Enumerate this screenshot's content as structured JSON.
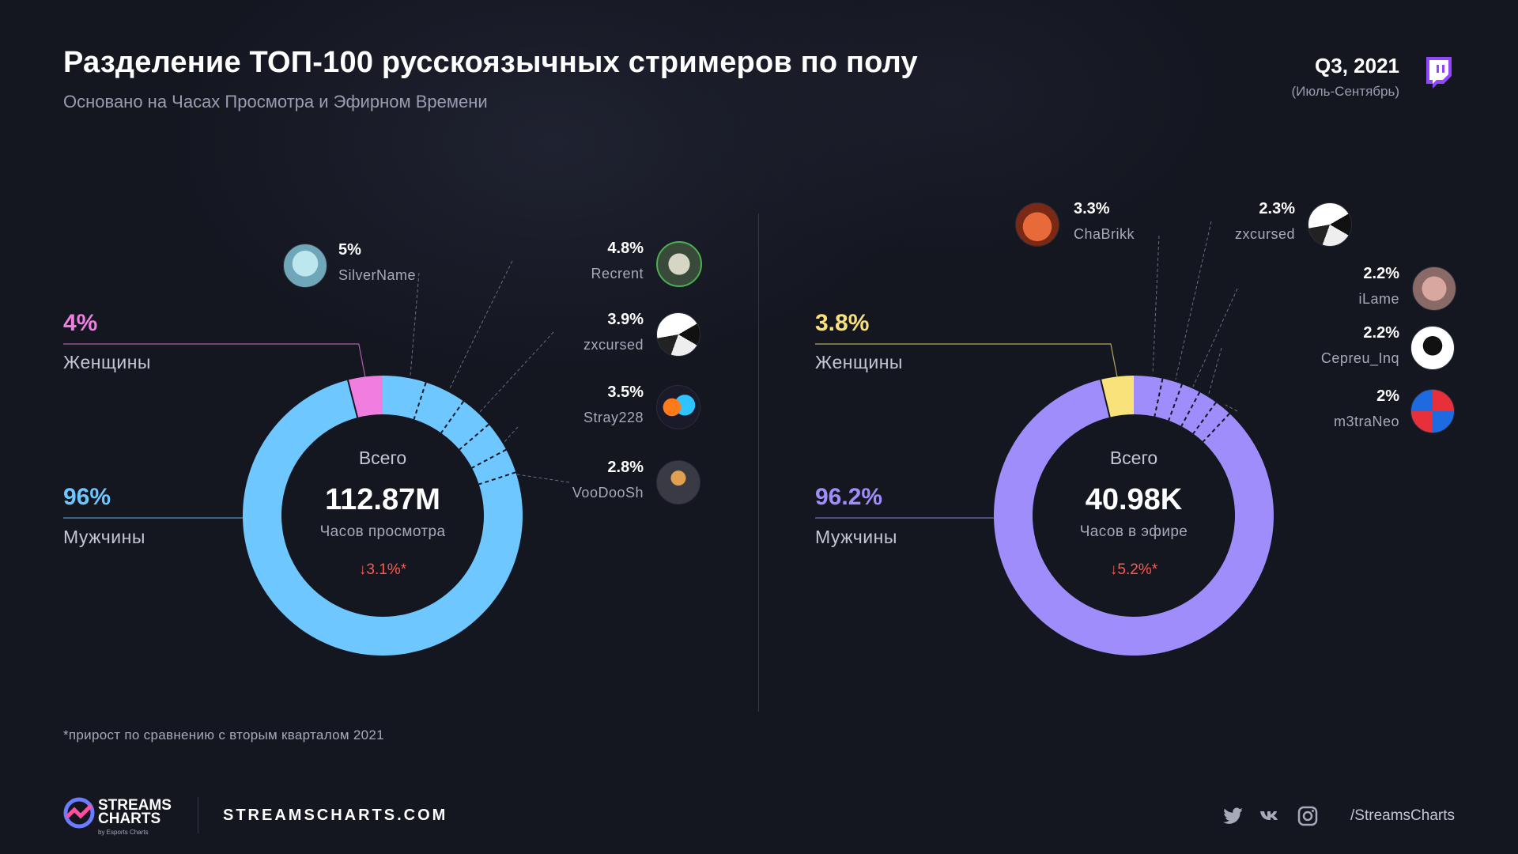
{
  "header": {
    "title": "Разделение ТОП-100 русскоязычных стримеров по полу",
    "subtitle": "Основано на Часах Просмотра и Эфирном Времени",
    "period": "Q3, 2021",
    "period_sub": "(Июль-Сентябрь)"
  },
  "chart_data": [
    {
      "type": "donut",
      "center_label": "Всего",
      "total": "112.87M",
      "unit": "Часов просмотра",
      "change": "↓3.1%*",
      "segments": [
        {
          "label": "Мужчины",
          "value": 96,
          "display": "96%",
          "color": "#6fc7ff"
        },
        {
          "label": "Женщины",
          "value": 4,
          "display": "4%",
          "color": "#f07ee0"
        }
      ],
      "top_streamers": [
        {
          "name": "SilverName",
          "value": 5,
          "display": "5%"
        },
        {
          "name": "Recrent",
          "value": 4.8,
          "display": "4.8%"
        },
        {
          "name": "zxcursed",
          "value": 3.9,
          "display": "3.9%"
        },
        {
          "name": "Stray228",
          "value": 3.5,
          "display": "3.5%"
        },
        {
          "name": "VooDooSh",
          "value": 2.8,
          "display": "2.8%"
        }
      ]
    },
    {
      "type": "donut",
      "center_label": "Всего",
      "total": "40.98K",
      "unit": "Часов в эфире",
      "change": "↓5.2%*",
      "segments": [
        {
          "label": "Мужчины",
          "value": 96.2,
          "display": "96.2%",
          "color": "#9f8dfb"
        },
        {
          "label": "Женщины",
          "value": 3.8,
          "display": "3.8%",
          "color": "#f9e27a"
        }
      ],
      "top_streamers": [
        {
          "name": "ChaBrikk",
          "value": 3.3,
          "display": "3.3%"
        },
        {
          "name": "zxcursed",
          "value": 2.3,
          "display": "2.3%"
        },
        {
          "name": "iLame",
          "value": 2.2,
          "display": "2.2%"
        },
        {
          "name": "Cepreu_Inq",
          "value": 2.2,
          "display": "2.2%"
        },
        {
          "name": "m3traNeo",
          "value": 2,
          "display": "2%"
        }
      ]
    }
  ],
  "footnote": "*прирост по сравнению с вторым кварталом 2021",
  "footer": {
    "logo_line1": "STREAMS",
    "logo_line2": "CHARTS",
    "logo_sub": "by Esports Charts",
    "site": "STREAMSCHARTS.COM",
    "handle": "/StreamsCharts",
    "icons": [
      "twitter-icon",
      "vk-icon",
      "instagram-icon"
    ]
  }
}
